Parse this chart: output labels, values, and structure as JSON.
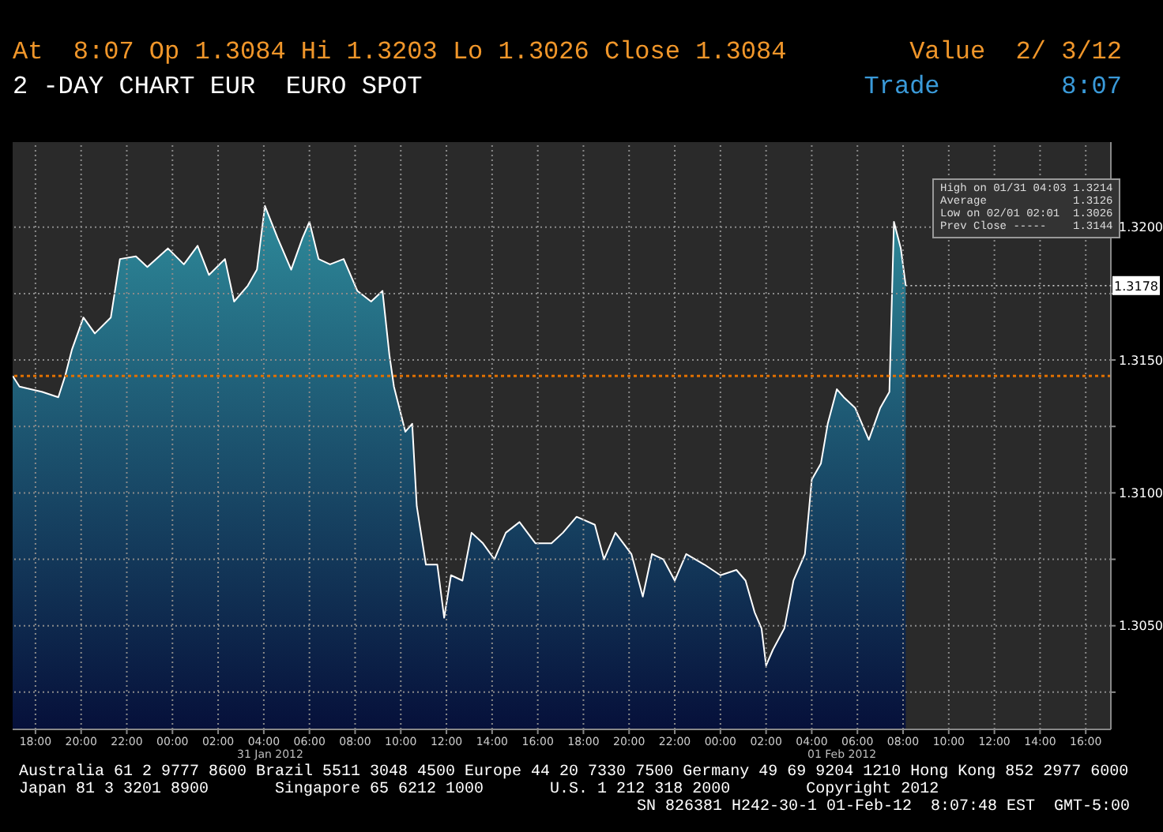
{
  "chart_data": {
    "type": "area",
    "title": "At  8:07 Op 1.3084 Hi 1.3203 Lo 1.3026 Close 1.3084",
    "subtitle": "2 -DAY CHART EUR  EURO SPOT",
    "x": [
      "2012-01-30T17:00",
      "2012-01-30T17:18",
      "2012-01-30T18:18",
      "2012-01-30T19:00",
      "2012-01-30T19:18",
      "2012-01-30T19:36",
      "2012-01-30T20:06",
      "2012-01-30T20:36",
      "2012-01-30T21:18",
      "2012-01-30T21:42",
      "2012-01-30T22:24",
      "2012-01-30T22:54",
      "2012-01-30T23:48",
      "2012-01-31T00:30",
      "2012-01-31T01:06",
      "2012-01-31T01:36",
      "2012-01-31T02:18",
      "2012-01-31T02:42",
      "2012-01-31T03:18",
      "2012-01-31T03:42",
      "2012-01-31T04:03",
      "2012-01-31T04:36",
      "2012-01-31T05:12",
      "2012-01-31T05:42",
      "2012-01-31T06:00",
      "2012-01-31T06:24",
      "2012-01-31T06:54",
      "2012-01-31T07:30",
      "2012-01-31T08:06",
      "2012-01-31T08:42",
      "2012-01-31T09:12",
      "2012-01-31T09:30",
      "2012-01-31T09:42",
      "2012-01-31T10:12",
      "2012-01-31T10:30",
      "2012-01-31T10:42",
      "2012-01-31T11:06",
      "2012-01-31T11:36",
      "2012-01-31T11:54",
      "2012-01-31T12:12",
      "2012-01-31T12:42",
      "2012-01-31T13:06",
      "2012-01-31T13:36",
      "2012-01-31T14:06",
      "2012-01-31T14:36",
      "2012-01-31T15:12",
      "2012-01-31T15:54",
      "2012-01-31T16:36",
      "2012-01-31T17:06",
      "2012-01-31T17:42",
      "2012-01-31T18:30",
      "2012-01-31T18:54",
      "2012-01-31T19:24",
      "2012-01-31T20:06",
      "2012-01-31T20:36",
      "2012-01-31T21:00",
      "2012-01-31T21:30",
      "2012-01-31T22:00",
      "2012-01-31T22:30",
      "2012-01-31T23:18",
      "2012-02-01T00:00",
      "2012-02-01T00:42",
      "2012-02-01T01:06",
      "2012-02-01T01:30",
      "2012-02-01T01:48",
      "2012-02-01T02:00",
      "2012-02-01T02:18",
      "2012-02-01T02:48",
      "2012-02-01T03:12",
      "2012-02-01T03:42",
      "2012-02-01T04:00",
      "2012-02-01T04:24",
      "2012-02-01T04:42",
      "2012-02-01T05:06",
      "2012-02-01T05:24",
      "2012-02-01T05:54",
      "2012-02-01T06:30",
      "2012-02-01T07:00",
      "2012-02-01T07:24",
      "2012-02-01T07:36",
      "2012-02-01T07:54",
      "2012-02-01T08:07"
    ],
    "series": [
      {
        "color": "#2e8a9a",
        "values": [
          1.3144,
          1.314,
          1.3138,
          1.3136,
          1.3144,
          1.3154,
          1.3166,
          1.316,
          1.3166,
          1.3188,
          1.3189,
          1.3185,
          1.3192,
          1.3186,
          1.3193,
          1.3182,
          1.3188,
          1.3172,
          1.3178,
          1.3184,
          1.3208,
          1.3196,
          1.3184,
          1.3196,
          1.3202,
          1.3188,
          1.3186,
          1.3188,
          1.3176,
          1.3172,
          1.3176,
          1.3152,
          1.314,
          1.3123,
          1.3126,
          1.3095,
          1.3073,
          1.3073,
          1.3053,
          1.3069,
          1.3067,
          1.3085,
          1.3081,
          1.3075,
          1.3085,
          1.3089,
          1.3081,
          1.3081,
          1.3085,
          1.3091,
          1.3088,
          1.3075,
          1.3085,
          1.3077,
          1.3061,
          1.3077,
          1.3075,
          1.3067,
          1.3077,
          1.3073,
          1.3069,
          1.3071,
          1.3067,
          1.3055,
          1.3049,
          1.3035,
          1.3041,
          1.3049,
          1.3067,
          1.3077,
          1.3105,
          1.3111,
          1.3126,
          1.3139,
          1.3136,
          1.3132,
          1.312,
          1.3132,
          1.3138,
          1.3202,
          1.3192,
          1.3178
        ]
      }
    ],
    "xlim": [
      "2012-01-30T17:00",
      "2012-02-01T17:06"
    ],
    "xticks": [
      {
        "value": "2012-01-30T18:00",
        "label": "18:00"
      },
      {
        "value": "2012-01-30T20:00",
        "label": "20:00"
      },
      {
        "value": "2012-01-30T22:00",
        "label": "22:00"
      },
      {
        "value": "2012-01-31T00:00",
        "label": "00:00"
      },
      {
        "value": "2012-01-31T02:00",
        "label": "02:00"
      },
      {
        "value": "2012-01-31T04:00",
        "label": "04:00"
      },
      {
        "value": "2012-01-31T06:00",
        "label": "06:00"
      },
      {
        "value": "2012-01-31T08:00",
        "label": "08:00"
      },
      {
        "value": "2012-01-31T10:00",
        "label": "10:00"
      },
      {
        "value": "2012-01-31T12:00",
        "label": "12:00"
      },
      {
        "value": "2012-01-31T14:00",
        "label": "14:00"
      },
      {
        "value": "2012-01-31T16:00",
        "label": "16:00"
      },
      {
        "value": "2012-01-31T18:00",
        "label": "18:00"
      },
      {
        "value": "2012-01-31T20:00",
        "label": "20:00"
      },
      {
        "value": "2012-01-31T22:00",
        "label": "22:00"
      },
      {
        "value": "2012-02-01T00:00",
        "label": "00:00"
      },
      {
        "value": "2012-02-01T02:00",
        "label": "02:00"
      },
      {
        "value": "2012-02-01T04:00",
        "label": "04:00"
      },
      {
        "value": "2012-02-01T06:00",
        "label": "06:00"
      },
      {
        "value": "2012-02-01T08:00",
        "label": "08:00"
      },
      {
        "value": "2012-02-01T10:00",
        "label": "10:00"
      },
      {
        "value": "2012-02-01T12:00",
        "label": "12:00"
      },
      {
        "value": "2012-02-01T14:00",
        "label": "14:00"
      },
      {
        "value": "2012-02-01T16:00",
        "label": "16:00"
      }
    ],
    "ylim": [
      1.3011,
      1.3232
    ],
    "yticks": [
      {
        "value": 1.3025,
        "label": null
      },
      {
        "value": 1.305,
        "label": "1.3050"
      },
      {
        "value": 1.3075,
        "label": null
      },
      {
        "value": 1.31,
        "label": "1.3100"
      },
      {
        "value": 1.3125,
        "label": null
      },
      {
        "value": 1.315,
        "label": "1.3150"
      },
      {
        "value": 1.3175,
        "label": null
      },
      {
        "value": 1.32,
        "label": "1.3200"
      }
    ],
    "grid": true,
    "ref_lines": [
      {
        "axis": "y",
        "value": 1.3144,
        "color": "#e07000",
        "line_style": "dotted"
      }
    ],
    "annotations": [
      "Value  2/ 3/12",
      "Trade        8:07",
      "High on 01/31 04:03 1.3214",
      "Average             1.3126",
      "Low on 02/01 02:01  1.3026",
      "Prev Close -----    1.3144",
      "31 Jan 2012",
      "01 Feb 2012",
      "Australia 61 2 9777 8600 Brazil 5511 3048 4500 Europe 44 20 7330 7500 Germany 49 69 9204 1210 Hong Kong 852 2977 6000",
      "Japan 81 3 3201 8900       Singapore 65 6212 1000       U.S. 1 212 318 2000        Copyright 2012",
      "SN 826381 H242-30-1 01-Feb-12  8:07:48 EST  GMT-5:00",
      {
        "text": "1.3178",
        "x": "2012-02-01T08:07",
        "y": 1.3178
      }
    ]
  }
}
